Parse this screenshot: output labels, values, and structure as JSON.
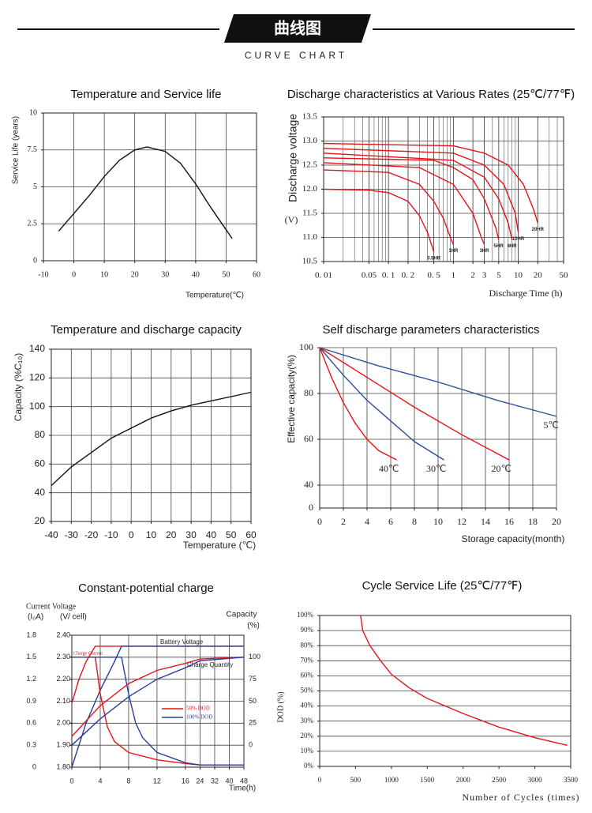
{
  "header": {
    "title": "曲线图",
    "subtitle": "CURVE CHART"
  },
  "chart_data": [
    {
      "type": "line",
      "title": "Temperature and Service life",
      "y_label": "Service Life (years)",
      "x_label": "Temperature(℃)",
      "xlim": [
        -10,
        60
      ],
      "xticks": [
        -10,
        0,
        10,
        20,
        30,
        40,
        50,
        60
      ],
      "ylim": [
        0,
        10
      ],
      "yticks": [
        0,
        2.5,
        5,
        7.5,
        10
      ],
      "grid": "both",
      "series": [
        {
          "color": "#111111",
          "x": [
            -5,
            0,
            5,
            10,
            15,
            20,
            24,
            30,
            35,
            40,
            45,
            50,
            52
          ],
          "values": [
            2.0,
            3.2,
            4.4,
            5.7,
            6.8,
            7.5,
            7.7,
            7.4,
            6.6,
            5.2,
            3.6,
            2.1,
            1.5
          ]
        }
      ]
    },
    {
      "type": "line",
      "title": "Discharge characteristics at Various Rates (25℃/77℉)",
      "y_label": "Discharge voltage",
      "y_unit": "(V)",
      "x_label": "Discharge Time (h)",
      "xscale": "log",
      "minor_grid": true,
      "xlim": [
        0.01,
        50
      ],
      "xticks": [
        {
          "value": 0.01,
          "label": "0. 01"
        },
        0.05,
        {
          "value": 0.1,
          "label": "0. 1"
        },
        {
          "value": 0.2,
          "label": "0. 2"
        },
        {
          "value": 0.5,
          "label": "0. 5"
        },
        1,
        2,
        3,
        5,
        10,
        20,
        50
      ],
      "ylim": [
        10.5,
        13.5
      ],
      "yticks": [
        10.5,
        {
          "value": 11,
          "label": "11.0"
        },
        11.5,
        {
          "value": 12,
          "label": "12.0"
        },
        12.5,
        {
          "value": 13,
          "label": "13.0"
        },
        13.5
      ],
      "grid": "both",
      "series": [
        {
          "name": "0.5HR",
          "color": "#e3141b",
          "x": [
            0.01,
            0.05,
            0.1,
            0.2,
            0.3,
            0.4,
            0.5
          ],
          "values": [
            12.0,
            11.98,
            11.93,
            11.75,
            11.45,
            11.1,
            10.7
          ]
        },
        {
          "name": "1HR",
          "color": "#e3141b",
          "x": [
            0.01,
            0.1,
            0.3,
            0.5,
            0.7,
            0.9,
            1.0
          ],
          "values": [
            12.4,
            12.35,
            12.1,
            11.75,
            11.4,
            11.0,
            10.85
          ]
        },
        {
          "name": "3HR",
          "color": "#e3141b",
          "x": [
            0.01,
            0.3,
            1,
            2,
            2.7,
            3
          ],
          "values": [
            12.55,
            12.45,
            12.1,
            11.5,
            11.0,
            10.85
          ]
        },
        {
          "name": "5HR",
          "color": "#e3141b",
          "x": [
            0.01,
            0.5,
            1,
            2,
            3,
            4.5,
            5
          ],
          "values": [
            12.65,
            12.6,
            12.45,
            12.2,
            11.8,
            11.2,
            10.95
          ]
        },
        {
          "name": "8HR",
          "color": "#e3141b",
          "x": [
            0.01,
            1,
            3,
            5,
            7,
            8
          ],
          "values": [
            12.75,
            12.6,
            12.25,
            11.8,
            11.3,
            10.95
          ]
        },
        {
          "name": "10HR",
          "color": "#e3141b",
          "x": [
            0.01,
            1,
            3,
            6,
            9,
            10
          ],
          "values": [
            12.85,
            12.75,
            12.5,
            12.1,
            11.5,
            11.1
          ]
        },
        {
          "name": "20HR",
          "color": "#e3141b",
          "x": [
            0.01,
            1,
            3,
            7,
            12,
            17,
            20
          ],
          "values": [
            12.95,
            12.9,
            12.75,
            12.5,
            12.1,
            11.6,
            11.3
          ]
        }
      ]
    },
    {
      "type": "line",
      "title": "Temperature and discharge capacity",
      "y_label": "Capacity (%C₁₀)",
      "x_label": "Temperature (℃)",
      "xlim": [
        -40,
        60
      ],
      "xticks": [
        -40,
        -30,
        -20,
        -10,
        0,
        10,
        20,
        30,
        40,
        50,
        60
      ],
      "ylim": [
        20,
        140
      ],
      "yticks": [
        20,
        40,
        60,
        80,
        100,
        120,
        140
      ],
      "grid": "both",
      "series": [
        {
          "color": "#111111",
          "x": [
            -40,
            -30,
            -20,
            -10,
            0,
            10,
            20,
            30,
            40,
            50,
            60
          ],
          "values": [
            45,
            58,
            68,
            78,
            85,
            92,
            97,
            101,
            104,
            107,
            110
          ]
        }
      ]
    },
    {
      "type": "line",
      "title": "Self discharge parameters characteristics",
      "y_label": "Effective capacity(%)",
      "x_label": "Storage capacity(month)",
      "xlim": [
        0,
        20
      ],
      "xticks": [
        0,
        2,
        4,
        6,
        8,
        10,
        12,
        14,
        16,
        18,
        20
      ],
      "ylim": [
        30,
        100
      ],
      "yticks": [
        40,
        60,
        80,
        100
      ],
      "y_origin_label": "0",
      "grid": "both",
      "series": [
        {
          "name": "5℃",
          "color": "#2a4f9a",
          "x": [
            0,
            5,
            10,
            15,
            20
          ],
          "values": [
            100,
            92,
            85,
            77,
            70
          ]
        },
        {
          "name": "20℃",
          "color": "#e3141b",
          "x": [
            0,
            4,
            8,
            12,
            16
          ],
          "values": [
            100,
            87,
            74,
            62,
            51
          ]
        },
        {
          "name": "30℃",
          "color": "#2a4f9a",
          "x": [
            0,
            2,
            4,
            6,
            8,
            10.5
          ],
          "values": [
            100,
            88,
            77,
            68,
            59,
            51
          ]
        },
        {
          "name": "40℃",
          "color": "#e3141b",
          "x": [
            0,
            1,
            2,
            3,
            4,
            5,
            6.5
          ],
          "values": [
            100,
            87,
            76,
            67,
            60,
            55,
            51
          ]
        }
      ]
    },
    {
      "type": "line",
      "title": "Constant-potential charge",
      "top_label": "Current Voltage",
      "y_label": "(I₀A)",
      "y2_label": "(V/ cell)",
      "y3_title": "Capacity",
      "y3_label": "(%)",
      "x_label": "Time(h)",
      "annotations": [
        "Battery Voltage",
        "Charge Current",
        "Charge Quantity"
      ],
      "legend": [
        {
          "name": "50% DOD",
          "color": "#e3141b"
        },
        {
          "name": "100% DOD",
          "color": "#2a3f9a"
        }
      ],
      "xscale": "broken",
      "xlim": [
        0,
        48
      ],
      "xticks": [
        0,
        4,
        8,
        12,
        16,
        24,
        32,
        40,
        48
      ],
      "ylim": [
        0,
        1.8
      ],
      "yticks": [
        0,
        0.3,
        0.6,
        0.9,
        1.2,
        1.5,
        1.8
      ],
      "y2lim": [
        1.8,
        2.4
      ],
      "y2ticks": [
        {
          "value": 1.8,
          "label": "1.80"
        },
        {
          "value": 1.9,
          "label": "1.90"
        },
        {
          "value": 2.0,
          "label": "2.00"
        },
        {
          "value": 2.1,
          "label": "2.10"
        },
        {
          "value": 2.2,
          "label": "2.20"
        },
        {
          "value": 2.3,
          "label": "2.30"
        },
        {
          "value": 2.4,
          "label": "2.40"
        }
      ],
      "y3lim": [
        -25,
        125
      ],
      "y3ticks": [
        0,
        25,
        50,
        75,
        100
      ],
      "grid": "both",
      "series": [
        {
          "color": "#e3141b",
          "axis": "y2",
          "x": [
            0,
            1,
            2,
            3.3,
            48
          ],
          "values": [
            2.09,
            2.2,
            2.28,
            2.35,
            2.35
          ]
        },
        {
          "color": "#2a3f9a",
          "axis": "y2",
          "x": [
            0,
            2,
            4,
            6,
            7,
            48
          ],
          "values": [
            1.8,
            2.0,
            2.15,
            2.28,
            2.35,
            2.35
          ]
        },
        {
          "color": "#e3141b",
          "x": [
            0,
            3.3,
            4,
            5,
            6,
            8,
            12,
            16,
            24,
            48
          ],
          "values": [
            1.5,
            1.5,
            1.0,
            0.55,
            0.35,
            0.2,
            0.1,
            0.05,
            0.03,
            0.03
          ]
        },
        {
          "color": "#2a3f9a",
          "x": [
            0,
            7,
            8,
            9,
            10,
            12,
            16,
            24,
            48
          ],
          "values": [
            1.5,
            1.5,
            1.0,
            0.6,
            0.4,
            0.2,
            0.06,
            0.03,
            0.03
          ]
        },
        {
          "color": "#e3141b",
          "axis": "y3",
          "x": [
            0,
            4,
            8,
            12,
            16,
            24,
            48
          ],
          "values": [
            10,
            45,
            70,
            85,
            93,
            98,
            100
          ]
        },
        {
          "color": "#2a3f9a",
          "axis": "y3",
          "x": [
            0,
            4,
            8,
            12,
            16,
            24,
            48
          ],
          "values": [
            0,
            30,
            55,
            75,
            88,
            96,
            100
          ]
        }
      ]
    },
    {
      "type": "line",
      "title": "Cycle Service Life (25℃/77℉)",
      "y_label": "DOD (%)",
      "x_label": "Number of Cycles (times)",
      "xlim": [
        0,
        3500
      ],
      "xticks": [
        0,
        500,
        1000,
        1500,
        2000,
        2500,
        3000,
        3500
      ],
      "ylim": [
        0,
        100
      ],
      "yticks": [
        {
          "value": 0,
          "label": "0%"
        },
        {
          "value": 10,
          "label": "10%"
        },
        {
          "value": 20,
          "label": "20%"
        },
        {
          "value": 30,
          "label": "30%"
        },
        {
          "value": 40,
          "label": "40%"
        },
        {
          "value": 50,
          "label": "50%"
        },
        {
          "value": 60,
          "label": "60%"
        },
        {
          "value": 70,
          "label": "70%"
        },
        {
          "value": 80,
          "label": "80%"
        },
        {
          "value": 90,
          "label": "90%"
        },
        {
          "value": 100,
          "label": "100%"
        }
      ],
      "grid": "y",
      "series": [
        {
          "color": "#e3141b",
          "x": [
            570,
            600,
            700,
            850,
            1000,
            1250,
            1500,
            2000,
            2500,
            3000,
            3450
          ],
          "values": [
            100,
            90,
            80,
            70,
            61,
            52,
            45,
            35,
            26,
            19,
            14
          ]
        }
      ]
    }
  ]
}
